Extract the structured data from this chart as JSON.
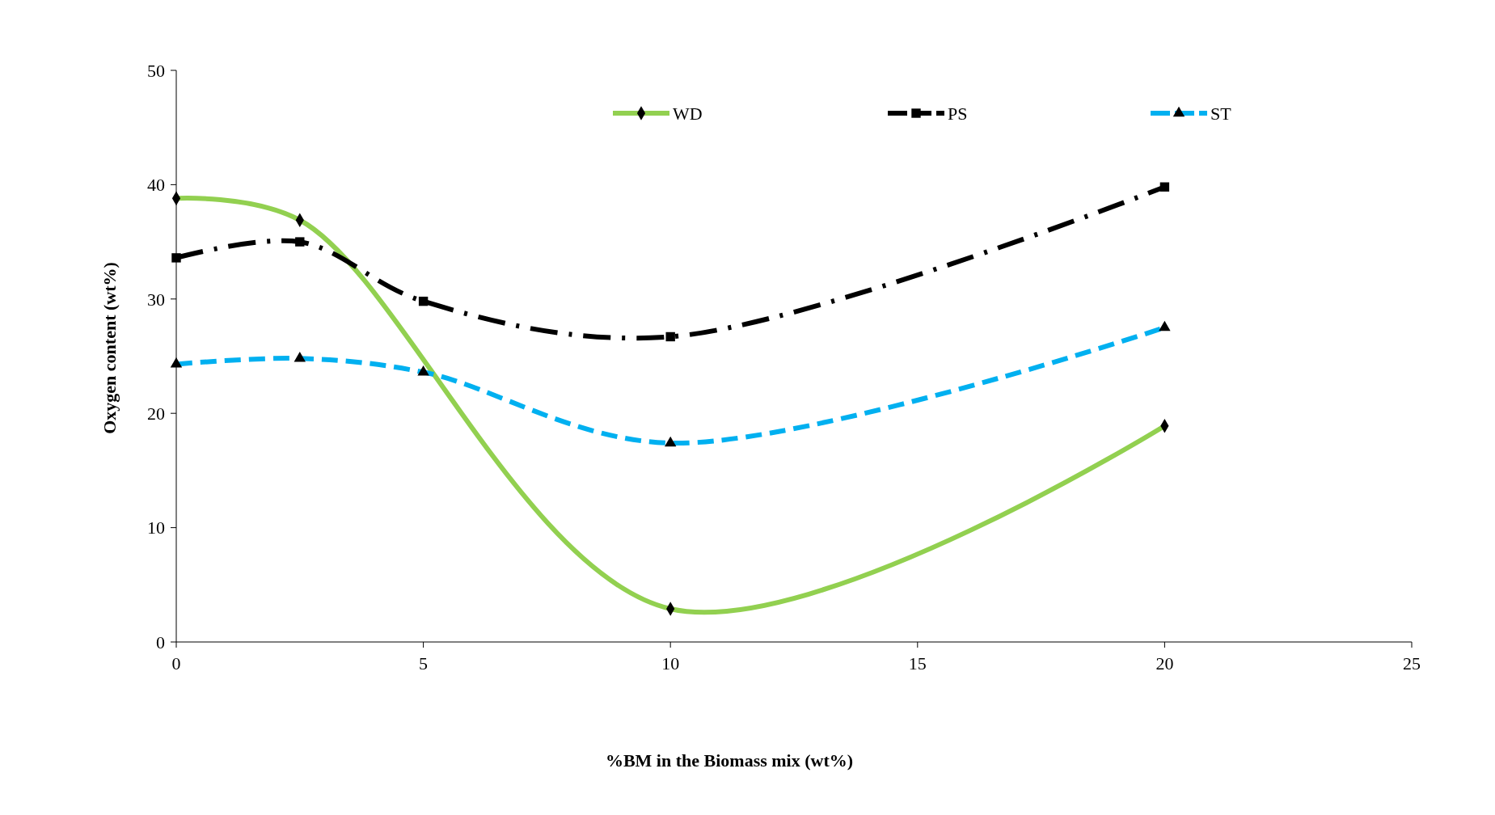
{
  "chart_data": {
    "type": "line",
    "xlabel": "%BM in the Biomass mix (wt%)",
    "ylabel": "Oxygen content (wt%)",
    "xlim": [
      0,
      25
    ],
    "xticks": [
      0,
      5,
      10,
      15,
      20,
      25
    ],
    "ylim": [
      0,
      50
    ],
    "yticks": [
      0,
      10,
      20,
      30,
      40,
      50
    ],
    "legend": "top",
    "grid": false,
    "series": [
      {
        "name": "WD",
        "color": "#92d050",
        "marker": "diamond",
        "line_style": "solid",
        "x": [
          0,
          2.5,
          10,
          20
        ],
        "values": [
          38.8,
          36.9,
          2.9,
          18.9
        ]
      },
      {
        "name": "PS",
        "color": "#000000",
        "marker": "square",
        "line_style": "dashed",
        "x": [
          0,
          2.5,
          5,
          10,
          20
        ],
        "values": [
          33.6,
          35,
          29.8,
          26.7,
          39.8
        ]
      },
      {
        "name": "ST",
        "color": "#00b0f0",
        "marker": "triangle",
        "line_style": "dashed",
        "x": [
          0,
          2.5,
          5,
          10,
          20
        ],
        "values": [
          24.3,
          24.8,
          23.6,
          17.4,
          27.5
        ]
      }
    ]
  }
}
